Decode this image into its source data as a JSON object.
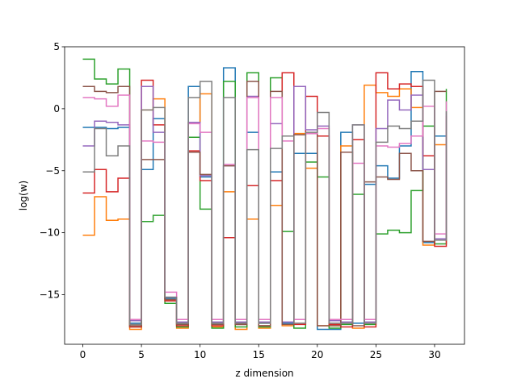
{
  "chart_data": {
    "type": "line",
    "drawstyle": "steps-post",
    "title": "",
    "xlabel": "z dimension",
    "ylabel": "log(w)",
    "xlim": [
      -1.55,
      32.55
    ],
    "ylim": [
      -19,
      5
    ],
    "xticks": [
      0,
      5,
      10,
      15,
      20,
      25,
      30
    ],
    "yticks": [
      -15,
      -10,
      -5,
      0,
      5
    ],
    "grid": false,
    "x": [
      0,
      1,
      2,
      3,
      4,
      5,
      6,
      7,
      8,
      9,
      10,
      11,
      12,
      13,
      14,
      15,
      16,
      17,
      18,
      19,
      20,
      21,
      22,
      23,
      24,
      25,
      26,
      27,
      28,
      29,
      30,
      31
    ],
    "series": [
      {
        "color": "#1f77b4",
        "values": [
          -1.5,
          -1.5,
          -1.6,
          -1.5,
          -17.3,
          -4.9,
          -0.8,
          -15.3,
          -17.3,
          1.8,
          -5.5,
          -17.3,
          3.3,
          -17.3,
          -1.9,
          -17.3,
          -5.1,
          -17.3,
          -3.6,
          -3.6,
          -17.8,
          -17.8,
          -1.9,
          -17.3,
          -6.1,
          -4.6,
          -5.6,
          -3.0,
          3.0,
          -10.8,
          -2.2,
          -2.2
        ]
      },
      {
        "color": "#ff7f0e",
        "values": [
          -10.2,
          -7.1,
          -9.0,
          -8.9,
          -17.8,
          -0.1,
          0.8,
          -15.4,
          -17.7,
          -1.1,
          1.2,
          -17.6,
          -6.7,
          -17.8,
          -8.9,
          -17.7,
          -7.8,
          -17.5,
          -2.0,
          -4.8,
          -17.5,
          -17.5,
          -3.0,
          -17.7,
          1.9,
          1.3,
          1.0,
          1.6,
          0.1,
          -11.0,
          -2.9,
          -2.9
        ]
      },
      {
        "color": "#2ca02c",
        "values": [
          4.0,
          2.4,
          2.0,
          3.2,
          -17.6,
          -9.1,
          -8.6,
          -15.7,
          -17.6,
          -2.3,
          -8.1,
          -17.7,
          2.2,
          -17.6,
          2.9,
          -17.6,
          2.5,
          -9.9,
          -17.7,
          -4.3,
          -5.5,
          -17.7,
          -17.4,
          -6.9,
          -17.4,
          -10.1,
          -9.8,
          -10.0,
          -6.6,
          -1.4,
          -10.9,
          1.6
        ]
      },
      {
        "color": "#d62728",
        "values": [
          -6.8,
          -4.9,
          -6.7,
          -5.6,
          -17.6,
          2.3,
          -1.3,
          -15.5,
          -17.5,
          -3.4,
          -5.8,
          -17.5,
          -10.4,
          -17.4,
          -6.2,
          -17.5,
          -5.8,
          2.9,
          -17.4,
          1.0,
          -2.2,
          -17.4,
          -17.6,
          -2.5,
          -17.6,
          2.9,
          1.6,
          2.0,
          1.8,
          -3.8,
          -11.1,
          -0.6
        ]
      },
      {
        "color": "#9467bd",
        "values": [
          -3.0,
          -1.0,
          -1.1,
          -1.3,
          -17.1,
          1.8,
          -1.9,
          -15.2,
          -17.2,
          -1.1,
          -5.4,
          -17.2,
          -4.6,
          -17.2,
          1.0,
          -17.2,
          -1.2,
          -17.2,
          1.8,
          -1.7,
          -1.4,
          -17.1,
          -17.2,
          -1.3,
          -17.2,
          -1.6,
          0.7,
          -0.1,
          1.1,
          -4.9,
          -10.5,
          -0.3
        ]
      },
      {
        "color": "#8c564b",
        "values": [
          1.8,
          1.4,
          1.3,
          1.8,
          -17.5,
          -4.1,
          -4.1,
          -15.4,
          -17.4,
          -3.5,
          -5.3,
          -17.4,
          -4.6,
          -17.4,
          2.2,
          -17.5,
          1.4,
          -17.4,
          -2.1,
          -2.0,
          -17.5,
          -17.5,
          -3.5,
          -17.5,
          -5.9,
          -5.5,
          -5.7,
          -3.6,
          -5.0,
          -10.7,
          1.4,
          1.4
        ]
      },
      {
        "color": "#e377c2",
        "values": [
          0.9,
          0.8,
          0.2,
          1.1,
          -17.0,
          -2.6,
          -2.7,
          -14.8,
          -17.0,
          -1.2,
          -1.9,
          -17.0,
          -4.5,
          -17.0,
          0.9,
          -17.0,
          0.9,
          -2.6,
          -17.0,
          -2.0,
          -1.6,
          -17.0,
          -17.0,
          -4.4,
          -17.0,
          -3.0,
          -3.1,
          -2.8,
          -2.2,
          0.2,
          -10.1,
          0.6
        ]
      },
      {
        "color": "#7f7f7f",
        "values": [
          -5.1,
          -1.6,
          -3.8,
          -3.0,
          -17.4,
          -0.1,
          0.1,
          -15.2,
          -17.3,
          0.9,
          2.2,
          -17.3,
          0.9,
          -17.3,
          -3.3,
          -17.3,
          -3.2,
          -2.2,
          -17.3,
          -1.9,
          -0.3,
          -17.3,
          -17.3,
          -1.3,
          -17.3,
          -2.7,
          -1.4,
          -1.6,
          -1.0,
          2.3,
          -10.6,
          -0.2
        ]
      }
    ]
  }
}
